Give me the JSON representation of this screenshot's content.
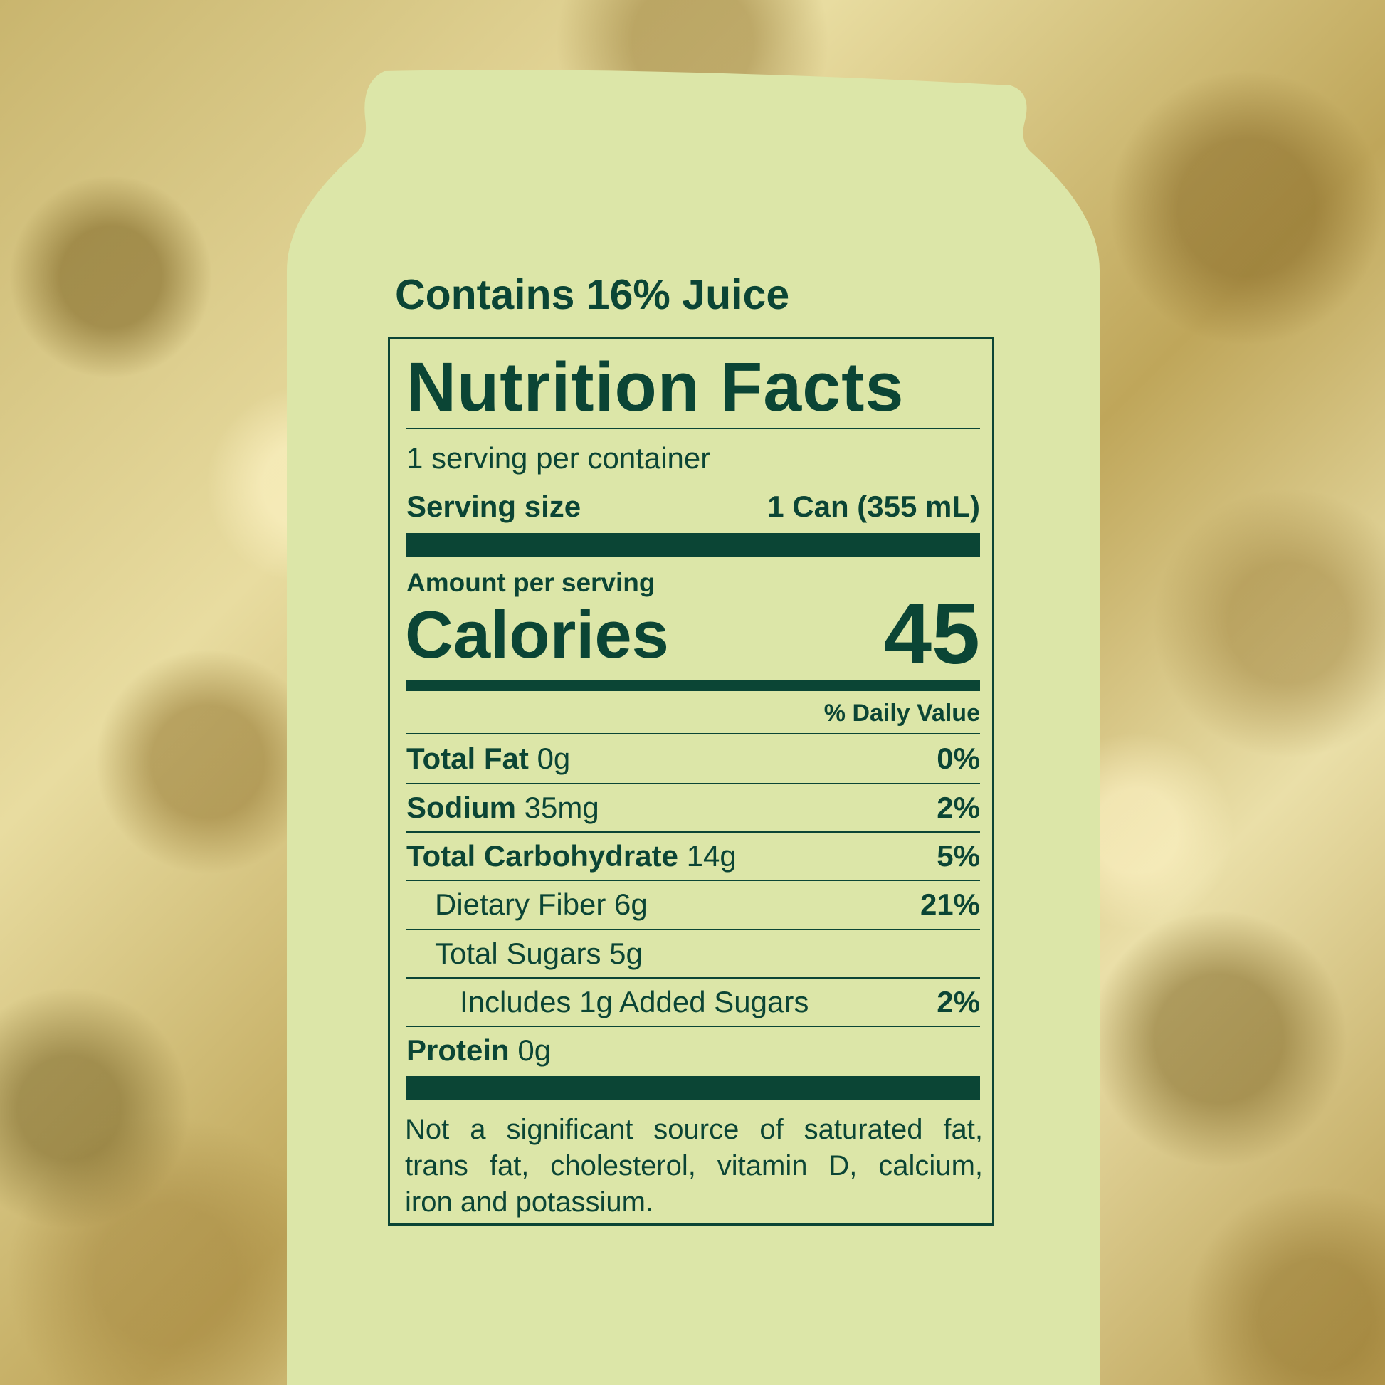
{
  "colors": {
    "can": "#dce6a8",
    "text": "#0b4535",
    "background": "#c9b56e"
  },
  "juice_label": "Contains 16% Juice",
  "label": {
    "title": "Nutrition Facts",
    "servings_per_container": "1 serving per container",
    "serving_size_label": "Serving size",
    "serving_size_value": "1 Can (355 mL)",
    "amount_per_serving": "Amount per serving",
    "calories_label": "Calories",
    "calories_value": "45",
    "daily_value_header": "% Daily Value",
    "rows": [
      {
        "name": "Total Fat",
        "amount": "0g",
        "dv": "0%"
      },
      {
        "name": "Sodium",
        "amount": "35mg",
        "dv": "2%"
      },
      {
        "name": "Total Carbohydrate",
        "amount": "14g",
        "dv": "5%"
      },
      {
        "name": "Dietary Fiber 6g",
        "amount": "",
        "dv": "21%"
      },
      {
        "name": "Total Sugars 5g",
        "amount": "",
        "dv": ""
      },
      {
        "name": "Includes 1g Added Sugars",
        "amount": "",
        "dv": "2%"
      },
      {
        "name": "Protein",
        "amount": "0g",
        "dv": ""
      }
    ],
    "footnote_lines": [
      "Not a significant source of saturated fat,",
      "trans fat, cholesterol, vitamin D, calcium,",
      "iron and potassium."
    ]
  }
}
